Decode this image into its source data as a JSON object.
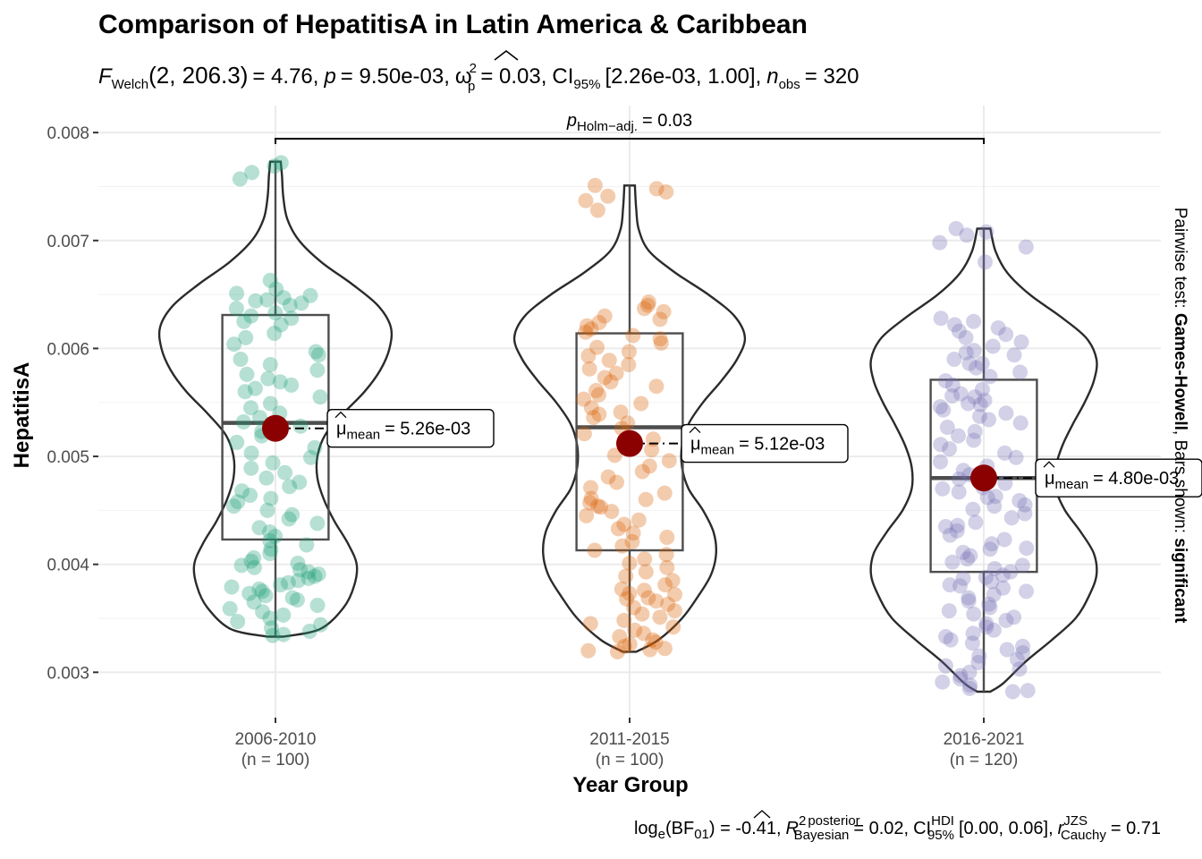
{
  "chart_data": {
    "type": "violin-box-jitter",
    "title": "Comparison of HepatitisA in Latin America & Caribbean",
    "subtitle": {
      "stat_name": "F",
      "stat_sub": "Welch",
      "df": "(2, 206.3)",
      "stat_value": "= 4.76,",
      "p_symbol": "p",
      "p_value": "= 9.50e-03,",
      "effect_symbol": "ω",
      "effect_sup": "2",
      "effect_sub": "p",
      "effect_value": "= 0.03,",
      "ci_label": "CI",
      "ci_sub": "95%",
      "ci_value": "[2.26e-03, 1.00],",
      "n_symbol": "n",
      "n_sub": "obs",
      "n_value": "= 320"
    },
    "caption": {
      "bf_prefix": "log",
      "bf_e": "e",
      "bf_mid": "(BF",
      "bf_01": "01",
      "bf_value": ") = -0.41,",
      "r_symbol": "R",
      "r_sup": "2",
      "r_sup2": "posterior",
      "r_sub": "Bayesian",
      "r_value": "= 0.02,",
      "ci_label": "CI",
      "ci_sup": "HDI",
      "ci_sub": "95%",
      "ci_value": "[0.00, 0.06],",
      "r2_symbol": "r",
      "r2_sup": "JZS",
      "r2_sub": "Cauchy",
      "r2_value": "= 0.71"
    },
    "xlabel": "Year Group",
    "ylabel": "HepatitisA",
    "ylim": [
      0.00258,
      0.00825
    ],
    "yticks": [
      0.003,
      0.004,
      0.005,
      0.006,
      0.007,
      0.008
    ],
    "ytick_labels": [
      "0.003",
      "0.004",
      "0.005",
      "0.006",
      "0.007",
      "0.008"
    ],
    "grid": true,
    "pairwise_annotation": {
      "prefix": "p",
      "sub": "Holm−adj.",
      "value": "= 0.03",
      "from": 0,
      "to": 2
    },
    "side_label": {
      "prefix": "Pairwise test: ",
      "test": "Games-Howell",
      "middle": ", Bars shown: ",
      "shown": "significant"
    },
    "groups": [
      {
        "name": "2006-2010",
        "n_label": "(n = 100)",
        "color": "#1B9E77",
        "mean": 0.00526,
        "mean_label_prefix": "μ",
        "mean_label_sub": "mean",
        "mean_label_value": "= 5.26e-03",
        "box": {
          "q1": 0.00423,
          "median": 0.00531,
          "q3": 0.00631,
          "min": 0.00333,
          "max": 0.00773
        },
        "violin": [
          [
            0.00333,
            0.06
          ],
          [
            0.0034,
            0.34
          ],
          [
            0.0036,
            0.52
          ],
          [
            0.0038,
            0.6
          ],
          [
            0.004,
            0.62
          ],
          [
            0.0042,
            0.55
          ],
          [
            0.0044,
            0.45
          ],
          [
            0.0046,
            0.37
          ],
          [
            0.0048,
            0.32
          ],
          [
            0.005,
            0.32
          ],
          [
            0.0052,
            0.38
          ],
          [
            0.0054,
            0.52
          ],
          [
            0.0056,
            0.68
          ],
          [
            0.0058,
            0.8
          ],
          [
            0.006,
            0.87
          ],
          [
            0.0062,
            0.88
          ],
          [
            0.0064,
            0.78
          ],
          [
            0.0066,
            0.58
          ],
          [
            0.0068,
            0.35
          ],
          [
            0.007,
            0.18
          ],
          [
            0.0072,
            0.09
          ],
          [
            0.0074,
            0.06
          ],
          [
            0.0076,
            0.05
          ],
          [
            0.00773,
            0.04
          ]
        ],
        "points": [
          0.00769,
          0.00772,
          0.00757,
          0.00763,
          0.00663,
          0.00655,
          0.00651,
          0.00649,
          0.00647,
          0.00645,
          0.00644,
          0.00642,
          0.0064,
          0.00637,
          0.00633,
          0.0063,
          0.00628,
          0.00625,
          0.00622,
          0.00614,
          0.0061,
          0.00604,
          0.00597,
          0.00594,
          0.0059,
          0.00585,
          0.0058,
          0.00576,
          0.00572,
          0.00569,
          0.00566,
          0.00563,
          0.0056,
          0.00555,
          0.00549,
          0.00545,
          0.0054,
          0.00536,
          0.00532,
          0.00528,
          0.00523,
          0.00519,
          0.00513,
          0.00508,
          0.00503,
          0.00499,
          0.00494,
          0.00489,
          0.00485,
          0.0048,
          0.00476,
          0.00472,
          0.00468,
          0.00464,
          0.00461,
          0.00458,
          0.00454,
          0.0045,
          0.00446,
          0.00442,
          0.00438,
          0.00434,
          0.0043,
          0.00426,
          0.00422,
          0.00418,
          0.00414,
          0.0041,
          0.00406,
          0.00403,
          0.00401,
          0.00399,
          0.00397,
          0.00395,
          0.00393,
          0.00391,
          0.00389,
          0.00387,
          0.00385,
          0.00383,
          0.00381,
          0.00379,
          0.00377,
          0.00375,
          0.00373,
          0.00371,
          0.00369,
          0.00367,
          0.00365,
          0.00362,
          0.00359,
          0.00356,
          0.00353,
          0.0035,
          0.00347,
          0.00344,
          0.00341,
          0.00338,
          0.00335,
          0.00334
        ]
      },
      {
        "name": "2011-2015",
        "n_label": "(n = 100)",
        "color": "#D95F02",
        "mean": 0.00512,
        "mean_label_prefix": "μ",
        "mean_label_sub": "mean",
        "mean_label_value": "= 5.12e-03",
        "box": {
          "q1": 0.00413,
          "median": 0.00527,
          "q3": 0.00614,
          "min": 0.00319,
          "max": 0.00751
        },
        "violin": [
          [
            0.00319,
            0.05
          ],
          [
            0.0033,
            0.22
          ],
          [
            0.0035,
            0.4
          ],
          [
            0.0037,
            0.52
          ],
          [
            0.0039,
            0.62
          ],
          [
            0.0041,
            0.66
          ],
          [
            0.0043,
            0.64
          ],
          [
            0.0045,
            0.56
          ],
          [
            0.0047,
            0.45
          ],
          [
            0.0049,
            0.4
          ],
          [
            0.0051,
            0.4
          ],
          [
            0.0053,
            0.45
          ],
          [
            0.0055,
            0.56
          ],
          [
            0.0057,
            0.7
          ],
          [
            0.0059,
            0.82
          ],
          [
            0.0061,
            0.88
          ],
          [
            0.0063,
            0.8
          ],
          [
            0.0065,
            0.6
          ],
          [
            0.0067,
            0.35
          ],
          [
            0.0069,
            0.15
          ],
          [
            0.0071,
            0.07
          ],
          [
            0.0073,
            0.05
          ],
          [
            0.00751,
            0.04
          ]
        ],
        "points": [
          0.00751,
          0.00748,
          0.00745,
          0.00741,
          0.00737,
          0.00728,
          0.00643,
          0.0064,
          0.00637,
          0.00634,
          0.0063,
          0.00627,
          0.00624,
          0.00621,
          0.00618,
          0.00615,
          0.00612,
          0.00609,
          0.00605,
          0.00601,
          0.00597,
          0.00593,
          0.00589,
          0.00585,
          0.00581,
          0.00577,
          0.00573,
          0.00569,
          0.00565,
          0.00561,
          0.00557,
          0.00553,
          0.00549,
          0.00545,
          0.00541,
          0.00536,
          0.00531,
          0.00526,
          0.00521,
          0.00516,
          0.00511,
          0.00506,
          0.00501,
          0.00496,
          0.00491,
          0.00486,
          0.00481,
          0.00476,
          0.00471,
          0.00466,
          0.00461,
          0.00457,
          0.00453,
          0.00449,
          0.00445,
          0.00441,
          0.00437,
          0.00433,
          0.00429,
          0.00425,
          0.00421,
          0.00417,
          0.00413,
          0.00409,
          0.00405,
          0.00401,
          0.00397,
          0.00393,
          0.00389,
          0.00385,
          0.00381,
          0.00377,
          0.00373,
          0.00369,
          0.00366,
          0.00363,
          0.0036,
          0.00357,
          0.00354,
          0.00351,
          0.00348,
          0.00345,
          0.00342,
          0.00339,
          0.00336,
          0.00333,
          0.0033,
          0.00328,
          0.00326,
          0.00324,
          0.00322,
          0.00321,
          0.0032,
          0.00319,
          0.00368,
          0.00372,
          0.00376,
          0.00454,
          0.0046,
          0.00539
        ]
      },
      {
        "name": "2016-2021",
        "n_label": "(n = 120)",
        "color": "#7570B3",
        "mean": 0.0048,
        "mean_label_prefix": "μ",
        "mean_label_sub": "mean",
        "mean_label_value": "= 4.80e-03",
        "box": {
          "q1": 0.00393,
          "median": 0.0048,
          "q3": 0.00571,
          "min": 0.00282,
          "max": 0.00711
        },
        "violin": [
          [
            0.00282,
            0.05
          ],
          [
            0.0029,
            0.15
          ],
          [
            0.0031,
            0.32
          ],
          [
            0.0033,
            0.52
          ],
          [
            0.0035,
            0.7
          ],
          [
            0.0037,
            0.8
          ],
          [
            0.0039,
            0.86
          ],
          [
            0.0041,
            0.84
          ],
          [
            0.0043,
            0.74
          ],
          [
            0.0045,
            0.62
          ],
          [
            0.0047,
            0.55
          ],
          [
            0.0049,
            0.55
          ],
          [
            0.0051,
            0.6
          ],
          [
            0.0053,
            0.68
          ],
          [
            0.0055,
            0.77
          ],
          [
            0.0057,
            0.84
          ],
          [
            0.0059,
            0.86
          ],
          [
            0.0061,
            0.78
          ],
          [
            0.0063,
            0.58
          ],
          [
            0.0065,
            0.35
          ],
          [
            0.0067,
            0.18
          ],
          [
            0.0069,
            0.09
          ],
          [
            0.00711,
            0.05
          ]
        ],
        "points": [
          0.00711,
          0.00708,
          0.00705,
          0.00698,
          0.00694,
          0.0068,
          0.00628,
          0.00625,
          0.00622,
          0.00619,
          0.00616,
          0.00613,
          0.0061,
          0.00606,
          0.00602,
          0.00598,
          0.00594,
          0.0059,
          0.00586,
          0.00582,
          0.00578,
          0.00574,
          0.0057,
          0.00566,
          0.00562,
          0.00558,
          0.00555,
          0.00552,
          0.00549,
          0.00546,
          0.00543,
          0.0054,
          0.00537,
          0.00534,
          0.00531,
          0.00527,
          0.00523,
          0.00519,
          0.00515,
          0.00511,
          0.00507,
          0.00503,
          0.00499,
          0.00495,
          0.00491,
          0.00487,
          0.00483,
          0.00479,
          0.00475,
          0.00471,
          0.00467,
          0.00463,
          0.00459,
          0.00455,
          0.00451,
          0.00447,
          0.00443,
          0.00439,
          0.00435,
          0.00431,
          0.00427,
          0.00423,
          0.00419,
          0.00415,
          0.00411,
          0.00408,
          0.00405,
          0.00402,
          0.00399,
          0.00396,
          0.00393,
          0.0039,
          0.00387,
          0.00384,
          0.00381,
          0.00378,
          0.00375,
          0.00372,
          0.00369,
          0.00366,
          0.00363,
          0.0036,
          0.00357,
          0.00354,
          0.00351,
          0.00348,
          0.00345,
          0.00342,
          0.00339,
          0.00336,
          0.00333,
          0.0033,
          0.00327,
          0.00324,
          0.00321,
          0.00318,
          0.00315,
          0.00312,
          0.00309,
          0.00306,
          0.00303,
          0.003,
          0.00297,
          0.00294,
          0.00291,
          0.00288,
          0.00285,
          0.00283,
          0.00282,
          0.00454,
          0.00462,
          0.0047,
          0.00548,
          0.00556,
          0.00586,
          0.00596,
          0.0038,
          0.00388,
          0.00414,
          0.00436
        ]
      }
    ]
  }
}
